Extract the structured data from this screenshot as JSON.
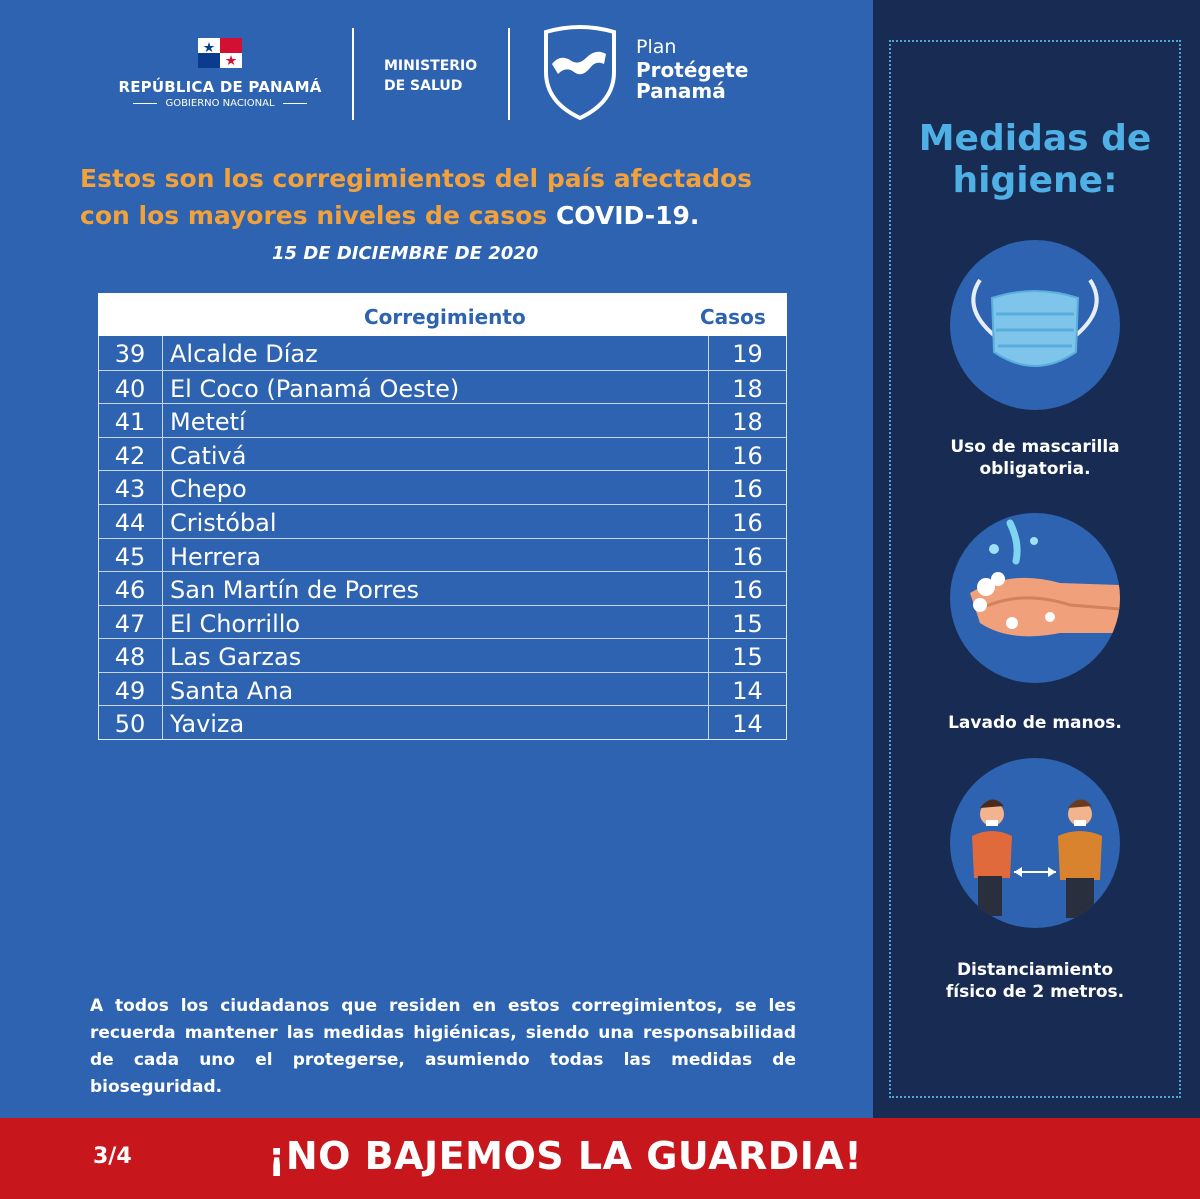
{
  "header": {
    "republic_title": "REPÚBLICA DE PANAMÁ",
    "republic_subtitle": "GOBIERNO NACIONAL",
    "ministry_line1": "MINISTERIO",
    "ministry_line2": "DE SALUD",
    "plan_line1": "Plan",
    "plan_line2": "Protégete",
    "plan_line3": "Panamá"
  },
  "headline": {
    "line1": "Estos son los corregimientos del país afectados",
    "line2_orange": "con los mayores niveles de casos ",
    "line2_white": "COVID-19.",
    "date": "15  DE DICIEMBRE DE 2020"
  },
  "table": {
    "col_name": "Corregimiento",
    "col_cases": "Casos",
    "rows": [
      {
        "num": "39",
        "name": "Alcalde Díaz",
        "cases": "19"
      },
      {
        "num": "40",
        "name": "El Coco (Panamá Oeste)",
        "cases": "18"
      },
      {
        "num": "41",
        "name": "Metetí",
        "cases": "18"
      },
      {
        "num": "42",
        "name": "Cativá",
        "cases": "16"
      },
      {
        "num": "43",
        "name": "Chepo",
        "cases": "16"
      },
      {
        "num": "44",
        "name": "Cristóbal",
        "cases": "16"
      },
      {
        "num": "45",
        "name": "Herrera",
        "cases": "16"
      },
      {
        "num": "46",
        "name": "San Martín de Porres",
        "cases": "16"
      },
      {
        "num": "47",
        "name": "El Chorrillo",
        "cases": "15"
      },
      {
        "num": "48",
        "name": "Las Garzas",
        "cases": "15"
      },
      {
        "num": "49",
        "name": "Santa Ana",
        "cases": "14"
      },
      {
        "num": "50",
        "name": "Yaviza",
        "cases": "14"
      }
    ]
  },
  "note": "A todos los ciudadanos que residen en estos corregimientos, se les recuerda mantener las medidas higiénicas, siendo una responsabilidad de cada uno el protegerse, asumiendo todas las medidas de bioseguridad.",
  "sidebar": {
    "title_line1": "Medidas de",
    "title_line2": "higiene:",
    "items": [
      {
        "line1": "Uso de mascarilla",
        "line2": "obligatoria.",
        "icon": "face-mask-icon"
      },
      {
        "line1": "Lavado de manos.",
        "line2": "",
        "icon": "hand-washing-icon"
      },
      {
        "line1": "Distanciamiento",
        "line2": "físico de 2 metros.",
        "icon": "social-distance-icon"
      }
    ]
  },
  "footer": {
    "page": "3/4",
    "slogan": "¡NO BAJEMOS LA GUARDIA!"
  },
  "colors": {
    "main_blue": "#2d63b0",
    "sidebar_navy": "#182c53",
    "accent_orange": "#f3a13b",
    "accent_light_blue": "#4fb0e6",
    "footer_red": "#c8161d"
  }
}
